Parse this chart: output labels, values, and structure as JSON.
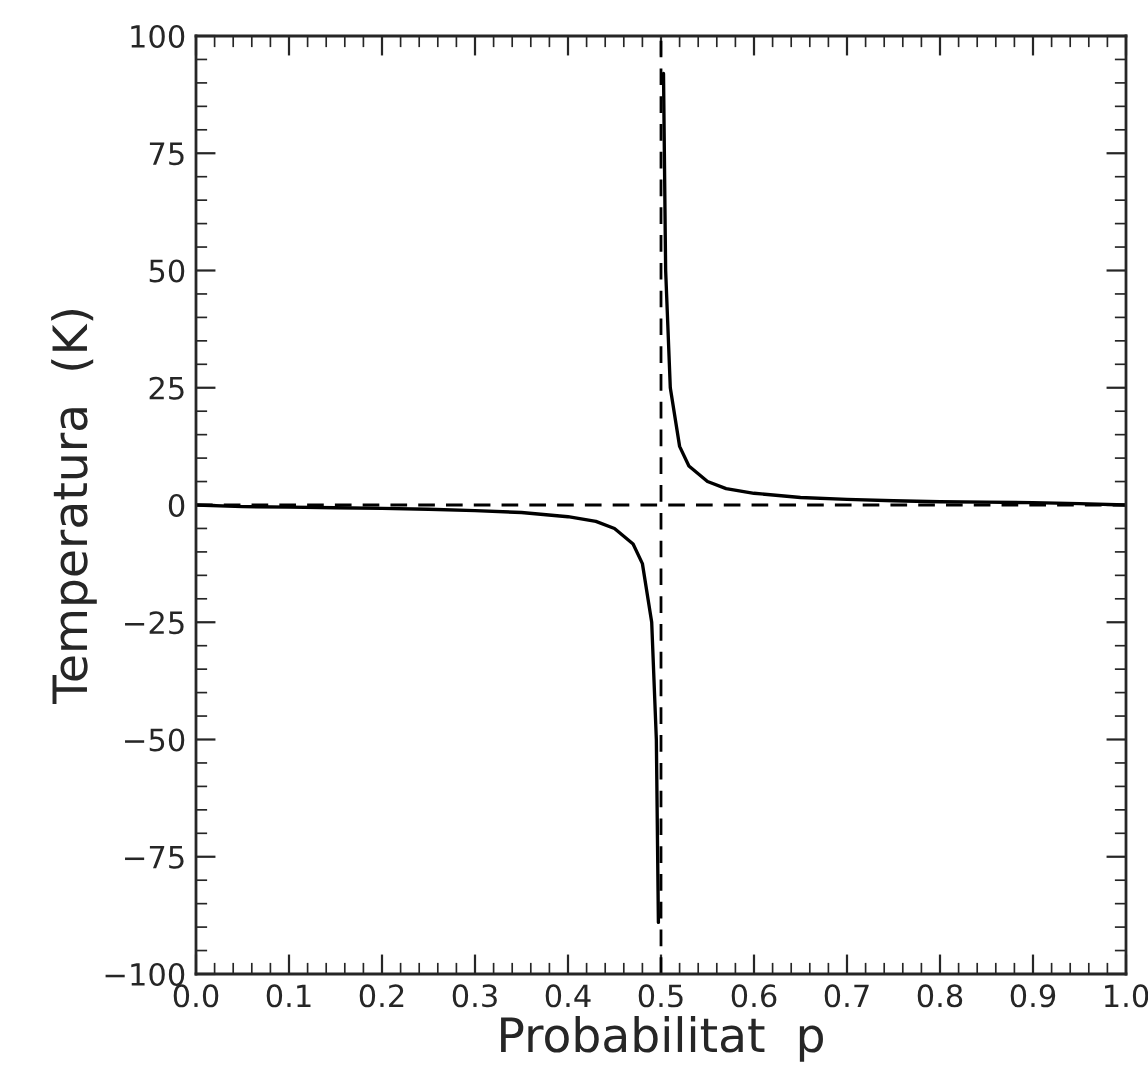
{
  "chart_data": {
    "type": "line",
    "xlabel": "Probabilitat  p",
    "ylabel": "Temperatura  (K)",
    "xlim": [
      0.0,
      1.0
    ],
    "ylim": [
      -100,
      100
    ],
    "xticks": [
      {
        "value": 0.0,
        "label": "0.0"
      },
      {
        "value": 0.1,
        "label": "0.1"
      },
      {
        "value": 0.2,
        "label": "0.2"
      },
      {
        "value": 0.3,
        "label": "0.3"
      },
      {
        "value": 0.4,
        "label": "0.4"
      },
      {
        "value": 0.5,
        "label": "0.5"
      },
      {
        "value": 0.6,
        "label": "0.6"
      },
      {
        "value": 0.7,
        "label": "0.7"
      },
      {
        "value": 0.8,
        "label": "0.8"
      },
      {
        "value": 0.9,
        "label": "0.9"
      },
      {
        "value": 1.0,
        "label": "1.0"
      }
    ],
    "yticks": [
      {
        "value": -100,
        "label": "−100"
      },
      {
        "value": -75,
        "label": "−75"
      },
      {
        "value": -50,
        "label": "−50"
      },
      {
        "value": -25,
        "label": "−25"
      },
      0,
      25,
      50,
      75,
      100
    ],
    "grid": false,
    "legend": false,
    "marker": "none",
    "line_style": "solid",
    "ref_lines": [
      {
        "axis": "y",
        "value": 0,
        "line_style": "dashed",
        "color": "#000000"
      },
      {
        "axis": "x",
        "value": 0.5,
        "line_style": "dashed",
        "color": "#000000"
      }
    ],
    "series": [
      {
        "color": "#000000",
        "x": [
          0.0,
          0.05,
          0.1,
          0.15,
          0.2,
          0.25,
          0.3,
          0.35,
          0.4,
          0.43,
          0.45,
          0.47,
          0.48,
          0.49,
          0.495,
          0.4972,
          0.5,
          0.5027,
          0.505,
          0.51,
          0.52,
          0.53,
          0.55,
          0.57,
          0.6,
          0.65,
          0.7,
          0.75,
          0.8,
          0.85,
          0.9,
          0.95,
          1.0
        ],
        "values": [
          0,
          -0.34,
          -0.46,
          -0.58,
          -0.72,
          -0.91,
          -1.2,
          -1.6,
          -2.5,
          -3.5,
          -5,
          -8.3,
          -12.5,
          -25,
          -50,
          -89,
          null,
          92,
          50,
          25,
          12.5,
          8.3,
          5,
          3.5,
          2.5,
          1.6,
          1.2,
          0.9,
          0.7,
          0.6,
          0.5,
          0.3,
          0
        ]
      }
    ]
  }
}
